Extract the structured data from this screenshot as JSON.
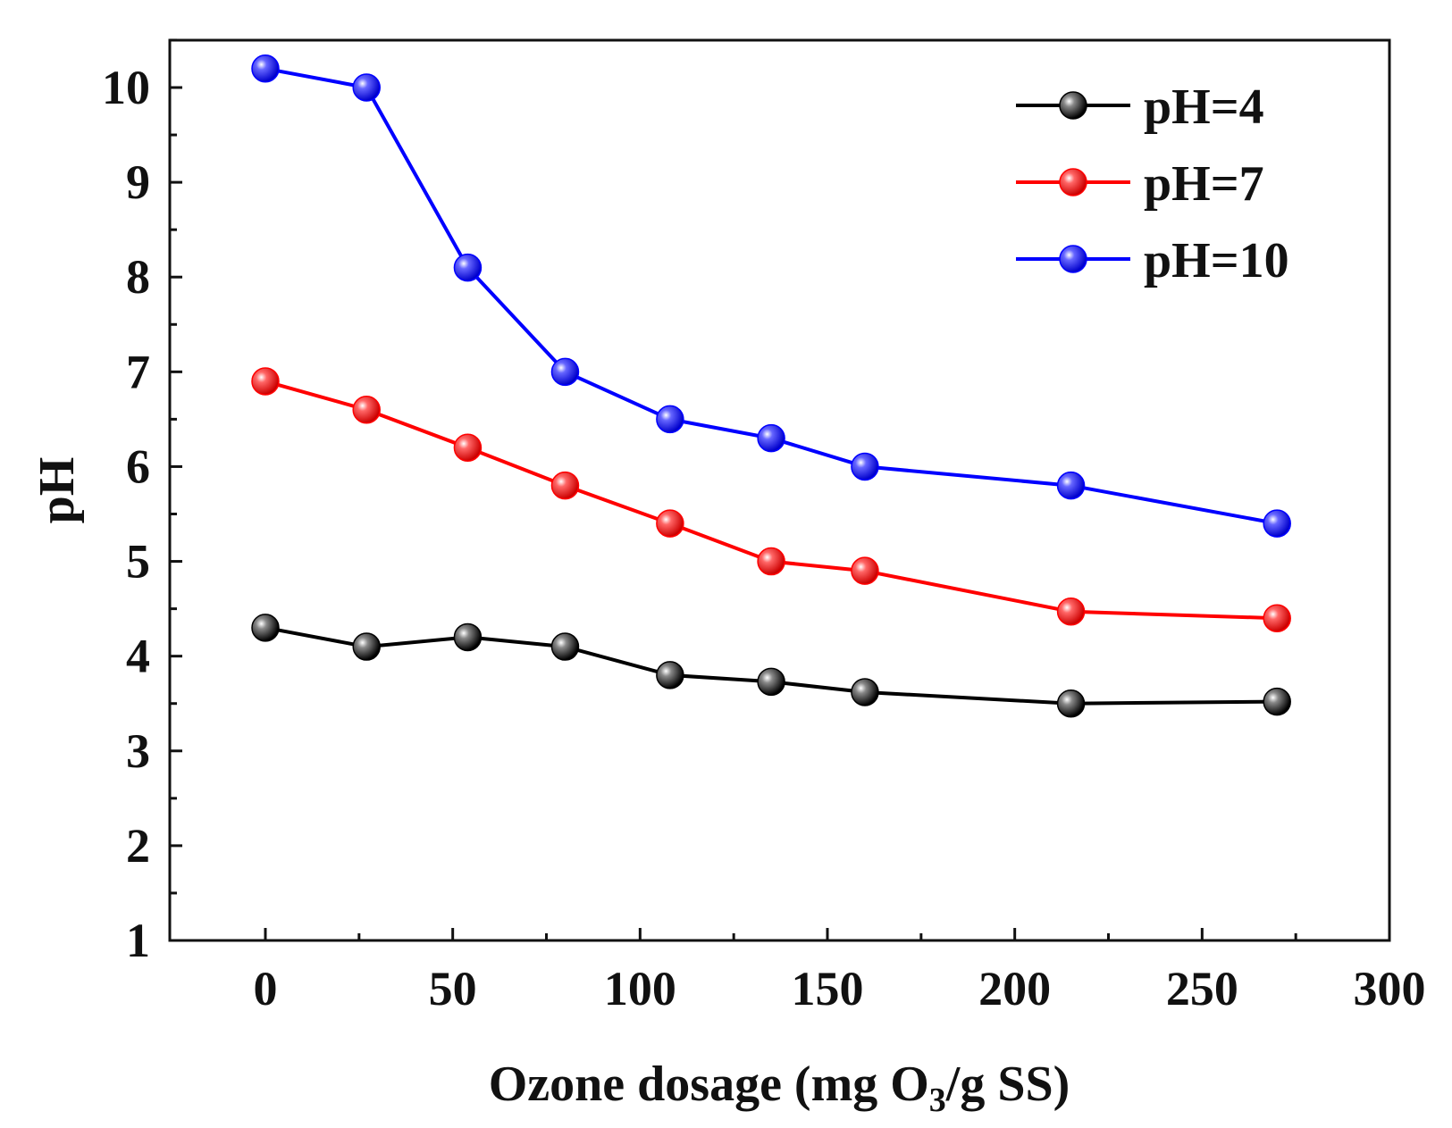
{
  "chart_data": {
    "type": "line",
    "title": "",
    "xlabel": "Ozone dosage (mg O",
    "xlabel_sub": "3",
    "xlabel_tail": "/g SS)",
    "ylabel": "pH",
    "xlim": [
      -25,
      300
    ],
    "ylim": [
      1,
      10.5
    ],
    "xticks": [
      0,
      50,
      100,
      150,
      200,
      250,
      300
    ],
    "xtick_labels": [
      "0",
      "50",
      "100",
      "150",
      "200",
      "250",
      "300"
    ],
    "yticks": [
      1,
      2,
      3,
      4,
      5,
      6,
      7,
      8,
      9,
      10
    ],
    "ytick_labels": [
      "1",
      "2",
      "3",
      "4",
      "5",
      "6",
      "7",
      "8",
      "9",
      "10"
    ],
    "grid": false,
    "legend_position": "top-right",
    "x": [
      0,
      27,
      54,
      80,
      108,
      135,
      160,
      215,
      270
    ],
    "series": [
      {
        "name": "pH=4",
        "color": "#000000",
        "values": [
          4.3,
          4.1,
          4.2,
          4.1,
          3.8,
          3.73,
          3.62,
          3.5,
          3.52
        ]
      },
      {
        "name": "pH=7",
        "color": "#ff0000",
        "values": [
          6.9,
          6.6,
          6.2,
          5.8,
          5.4,
          5.0,
          4.9,
          4.47,
          4.4
        ]
      },
      {
        "name": "pH=10",
        "color": "#0000ff",
        "values": [
          10.2,
          10.0,
          8.1,
          7.0,
          6.5,
          6.3,
          6.0,
          5.8,
          5.4
        ]
      }
    ]
  }
}
